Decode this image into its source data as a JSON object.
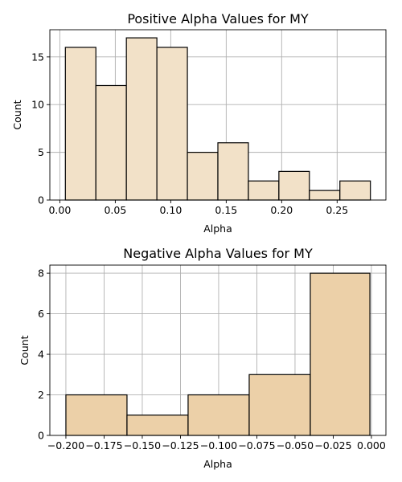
{
  "chart_data": [
    {
      "type": "bar",
      "title": "Positive Alpha Values for MY",
      "xlabel": "Alpha",
      "ylabel": "Count",
      "bar_color": "#f2e1c8",
      "bins": [
        {
          "start": 0.005,
          "end": 0.0325,
          "count": 16
        },
        {
          "start": 0.0325,
          "end": 0.06,
          "count": 12
        },
        {
          "start": 0.06,
          "end": 0.0875,
          "count": 17
        },
        {
          "start": 0.0875,
          "end": 0.115,
          "count": 16
        },
        {
          "start": 0.115,
          "end": 0.1425,
          "count": 5
        },
        {
          "start": 0.1425,
          "end": 0.17,
          "count": 6
        },
        {
          "start": 0.17,
          "end": 0.1975,
          "count": 2
        },
        {
          "start": 0.1975,
          "end": 0.225,
          "count": 3
        },
        {
          "start": 0.225,
          "end": 0.2525,
          "count": 1
        },
        {
          "start": 0.2525,
          "end": 0.28,
          "count": 2
        }
      ],
      "xlim": [
        -0.009,
        0.294
      ],
      "ylim": [
        0,
        17.85
      ],
      "xticks": [
        0.0,
        0.05,
        0.1,
        0.15,
        0.2,
        0.25
      ],
      "xtick_labels": [
        "0.00",
        "0.05",
        "0.10",
        "0.15",
        "0.20",
        "0.25"
      ],
      "yticks": [
        0,
        5,
        10,
        15
      ],
      "ytick_labels": [
        "0",
        "5",
        "10",
        "15"
      ],
      "grid": true
    },
    {
      "type": "bar",
      "title": "Negative Alpha Values for MY",
      "xlabel": "Alpha",
      "ylabel": "Count",
      "bar_color": "#ecd0a8",
      "bins": [
        {
          "start": -0.2,
          "end": -0.16,
          "count": 2
        },
        {
          "start": -0.16,
          "end": -0.12,
          "count": 1
        },
        {
          "start": -0.12,
          "end": -0.08,
          "count": 2
        },
        {
          "start": -0.08,
          "end": -0.04,
          "count": 3
        },
        {
          "start": -0.04,
          "end": -0.001,
          "count": 8
        }
      ],
      "xlim": [
        -0.2105,
        0.0095
      ],
      "ylim": [
        0,
        8.4
      ],
      "xticks": [
        -0.2,
        -0.175,
        -0.15,
        -0.125,
        -0.1,
        -0.075,
        -0.05,
        -0.025,
        0.0
      ],
      "xtick_labels": [
        "−0.200",
        "−0.175",
        "−0.150",
        "−0.125",
        "−0.100",
        "−0.075",
        "−0.050",
        "−0.025",
        "0.000"
      ],
      "yticks": [
        0,
        2,
        4,
        6,
        8
      ],
      "ytick_labels": [
        "0",
        "2",
        "4",
        "6",
        "8"
      ],
      "grid": true
    }
  ]
}
